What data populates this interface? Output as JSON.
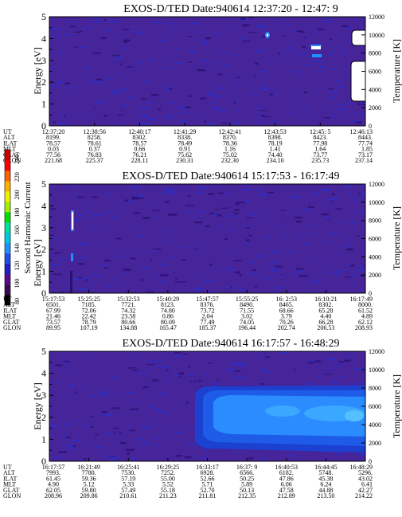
{
  "panels": [
    {
      "title": "EXOS-D/TED   Date:940614   12:37:20 - 12:47: 9",
      "ylabel": "Energy [eV]",
      "y2label": "Temperature [K]",
      "yticks": [
        "0",
        "1",
        "2",
        "3",
        "4",
        "5"
      ],
      "y2ticks": [
        "0",
        "2000",
        "4000",
        "6000",
        "8000",
        "10000",
        "12000"
      ],
      "row_labels": [
        "UT",
        "ALT",
        "ILAT",
        "MLT",
        "GLAT",
        "GLON"
      ],
      "columns": [
        [
          "12:37:20",
          "8199.",
          "78.57",
          "0.03",
          "77.56",
          "221.68"
        ],
        [
          "12:38:56",
          "8258.",
          "78.61",
          "0.37",
          "76.83",
          "225.37"
        ],
        [
          "12:40:17",
          "8302.",
          "78.57",
          "0.66",
          "76.21",
          "228.11"
        ],
        [
          "12:41:29",
          "8338.",
          "78.49",
          "0.91",
          "75.62",
          "230.31"
        ],
        [
          "12:42:41",
          "8370.",
          "78.36",
          "1.16",
          "75.02",
          "232.30"
        ],
        [
          "12:43:53",
          "8398.",
          "78.19",
          "1.41",
          "74.40",
          "234.10"
        ],
        [
          "12:45: 5",
          "8423.",
          "77.98",
          "1.64",
          "73.77",
          "235.73"
        ],
        [
          "12:46:13",
          "8443.",
          "77.74",
          "1.85",
          "73.17",
          "237.14"
        ]
      ]
    },
    {
      "title": "EXOS-D/TED   Date:940614   15:17:53 - 16:17:49",
      "ylabel": "Energy [eV]",
      "y2label": "Temperature [K]",
      "yticks": [
        "0",
        "1",
        "2",
        "3",
        "4",
        "5"
      ],
      "y2ticks": [
        "0",
        "2000",
        "4000",
        "6000",
        "8000",
        "10000",
        "12000"
      ],
      "row_labels": [
        "UT",
        "ALT",
        "ILAT",
        "MLT",
        "GLAT",
        "GLON"
      ],
      "columns": [
        [
          "15:17:53",
          "6501.",
          "67.99",
          "21.46",
          "73.57",
          "89.95"
        ],
        [
          "15:25:25",
          "7185.",
          "72.06",
          "22.42",
          "78.79",
          "107.19"
        ],
        [
          "15:32:53",
          "7721.",
          "74.32",
          "23.58",
          "80.66",
          "134.88"
        ],
        [
          "15:40:29",
          "8123.",
          "74.80",
          "0.86",
          "80.09",
          "165.47"
        ],
        [
          "15:47:57",
          "8376.",
          "73.72",
          "2.04",
          "77.49",
          "185.37"
        ],
        [
          "15:55:25",
          "8490.",
          "71.55",
          "3.02",
          "74.05",
          "196.44"
        ],
        [
          "16: 2:53",
          "8465.",
          "68.66",
          "3.79",
          "70.26",
          "202.74"
        ],
        [
          "16:10:21",
          "8302.",
          "65.28",
          "4.40",
          "66.28",
          "206.53"
        ],
        [
          "16:17:49",
          "8000.",
          "61.52",
          "4.89",
          "62.12",
          "208.93"
        ]
      ]
    },
    {
      "title": "EXOS-D/TED   Date:940614   16:17:57 - 16:48:29",
      "ylabel": "Energy [eV]",
      "y2label": "Temperature [K]",
      "yticks": [
        "0",
        "1",
        "2",
        "3",
        "4",
        "5"
      ],
      "y2ticks": [
        "0",
        "2000",
        "4000",
        "6000",
        "8000",
        "10000",
        "12000"
      ],
      "row_labels": [
        "UT",
        "ALT",
        "ILAT",
        "MLT",
        "GLAT",
        "GLON"
      ],
      "columns": [
        [
          "16:17:57",
          "7993.",
          "61.45",
          "4.90",
          "62.05",
          "208.96"
        ],
        [
          "16:21:49",
          "7780.",
          "59.36",
          "5.12",
          "59.80",
          "209.86"
        ],
        [
          "16:25:41",
          "7530.",
          "57.19",
          "5.33",
          "57.49",
          "210.61"
        ],
        [
          "16:29:25",
          "7252.",
          "55.00",
          "5.52",
          "55.18",
          "211.23"
        ],
        [
          "16:33:17",
          "6928.",
          "52.66",
          "5.71",
          "52.70",
          "211.81"
        ],
        [
          "16:37: 9",
          "6566.",
          "50.25",
          "5.89",
          "50.13",
          "212.35"
        ],
        [
          "16:40:53",
          "6182.",
          "47.86",
          "6.06",
          "47.58",
          "212.89"
        ],
        [
          "16:44:45",
          "5748.",
          "45.38",
          "6.24",
          "44.88",
          "213.50"
        ],
        [
          "16:48:29",
          "5296.",
          "43.02",
          "6.41",
          "42.27",
          "214.22"
        ]
      ]
    }
  ],
  "colorbar": {
    "label": "Second Harmonic Current",
    "ticks": [
      "80",
      "100",
      "120",
      "140",
      "160",
      "180",
      "200",
      "220",
      "240"
    ],
    "colors": [
      "#000000",
      "#3a0a55",
      "#5a0a90",
      "#2020c8",
      "#1e50e8",
      "#1e90ff",
      "#00c8e0",
      "#00e0a0",
      "#00e000",
      "#a0f000",
      "#f0f000",
      "#ffb000",
      "#ff6000",
      "#ff0000",
      "#d00000"
    ]
  },
  "colors": {
    "background": "#46249a",
    "speckle": "#2a30c8",
    "speckle_dark": "#2a1070",
    "beam_light": "#2a8cff",
    "beam_mid": "#1e5ce8",
    "beam_dark": "#1c40d0"
  }
}
